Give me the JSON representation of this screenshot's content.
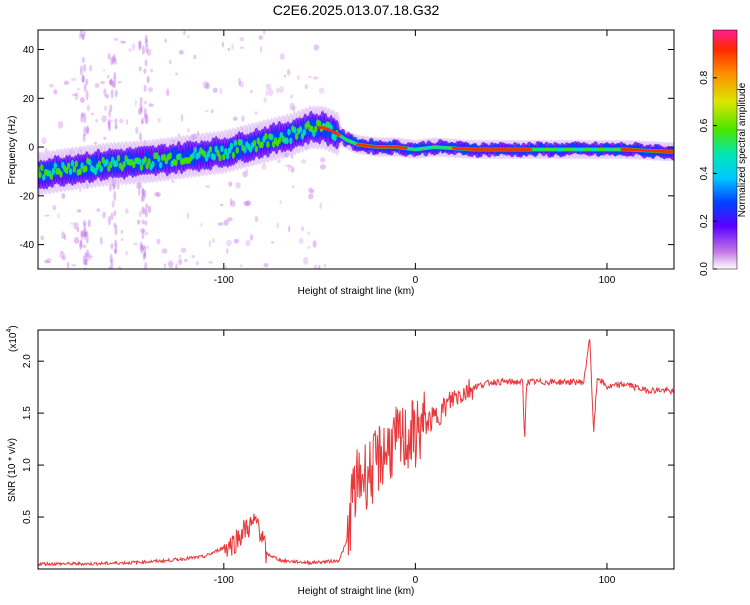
{
  "title": "C2E6.2025.013.07.18.G32",
  "colors": {
    "snr_line": "#e8383b",
    "axis": "#000000"
  },
  "chart_data": [
    {
      "type": "heatmap",
      "title": "C2E6.2025.013.07.18.G32",
      "xlabel": "Height of straight line (km)",
      "ylabel": "Frequency (Hz)",
      "xlim": [
        -197,
        135
      ],
      "ylim": [
        -50,
        48
      ],
      "xticks": [
        "-100",
        "0",
        "100"
      ],
      "yticks": [
        "40",
        "20",
        "0",
        "-20",
        "-40"
      ],
      "ridge": {
        "x": [
          -197,
          -180,
          -160,
          -140,
          -120,
          -100,
          -80,
          -65,
          -55,
          -48,
          -42,
          -36,
          -30,
          -20,
          -10,
          0,
          10,
          30,
          60,
          90,
          110,
          135
        ],
        "y": [
          -11,
          -9,
          -7,
          -6,
          -4,
          -2,
          2,
          5,
          8,
          8,
          6,
          3,
          1,
          0,
          0,
          -1,
          0,
          -1,
          -1,
          -1,
          -1,
          -2
        ]
      },
      "colorbar": {
        "label": "Normalized spectral amplitude",
        "ticks": [
          "0.0",
          "0.2",
          "0.4",
          "0.6",
          "0.8"
        ],
        "range": [
          0,
          1
        ],
        "colormap": "rainbow"
      }
    },
    {
      "type": "line",
      "xlabel": "Height of straight line (km)",
      "ylabel": "SNR (10 * v/v)",
      "multiplier_base": "(x10",
      "multiplier_exp": "4",
      "multiplier_close": ")",
      "xlim": [
        -197,
        135
      ],
      "ylim": [
        0,
        2.3
      ],
      "xticks": [
        "-100",
        "0",
        "100"
      ],
      "yticks": [
        "2.0",
        "1.5",
        "1.0",
        "0.5"
      ],
      "series": [
        {
          "values_unit": "x10^4",
          "x": [
            -197,
            -170,
            -150,
            -130,
            -110,
            -95,
            -88,
            -82,
            -78,
            -70,
            -55,
            -40,
            -35,
            -33,
            -28,
            -22,
            -18,
            -12,
            -5,
            0,
            5,
            10,
            15,
            20,
            30,
            40,
            50,
            56,
            57,
            58,
            60,
            70,
            80,
            88,
            91,
            93,
            95,
            100,
            110,
            115,
            120,
            130,
            135
          ],
          "y": [
            0.05,
            0.05,
            0.06,
            0.08,
            0.12,
            0.25,
            0.4,
            0.45,
            0.15,
            0.08,
            0.06,
            0.08,
            0.3,
            0.7,
            0.9,
            0.95,
            1.1,
            1.2,
            1.25,
            1.3,
            1.4,
            1.45,
            1.55,
            1.65,
            1.75,
            1.8,
            1.8,
            1.8,
            1.2,
            1.8,
            1.8,
            1.8,
            1.8,
            1.8,
            2.25,
            1.3,
            1.85,
            1.75,
            1.78,
            1.75,
            1.72,
            1.72,
            1.7
          ]
        }
      ]
    }
  ]
}
